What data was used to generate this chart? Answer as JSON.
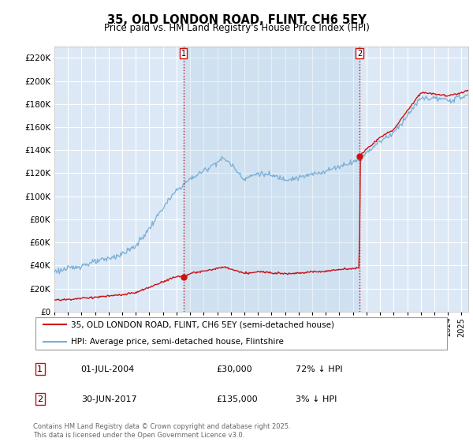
{
  "title": "35, OLD LONDON ROAD, FLINT, CH6 5EY",
  "subtitle": "Price paid vs. HM Land Registry's House Price Index (HPI)",
  "ylim": [
    0,
    230000
  ],
  "yticks": [
    0,
    20000,
    40000,
    60000,
    80000,
    100000,
    120000,
    140000,
    160000,
    180000,
    200000,
    220000
  ],
  "xlim_start": 1995.0,
  "xlim_end": 2025.5,
  "plot_background": "#dce8f5",
  "shade_color": "#c8dff0",
  "grid_color": "#ffffff",
  "hpi_color": "#7aaed6",
  "price_color": "#cc1111",
  "vline_color": "#cc1111",
  "transaction1_date": 2004.5,
  "transaction1_price": 30000,
  "transaction1_label": "1",
  "transaction2_date": 2017.5,
  "transaction2_price": 135000,
  "transaction2_label": "2",
  "legend_line1": "35, OLD LONDON ROAD, FLINT, CH6 5EY (semi-detached house)",
  "legend_line2": "HPI: Average price, semi-detached house, Flintshire",
  "annotation1_date": "01-JUL-2004",
  "annotation1_price": "£30,000",
  "annotation1_hpi": "72% ↓ HPI",
  "annotation2_date": "30-JUN-2017",
  "annotation2_price": "£135,000",
  "annotation2_hpi": "3% ↓ HPI",
  "footer": "Contains HM Land Registry data © Crown copyright and database right 2025.\nThis data is licensed under the Open Government Licence v3.0.",
  "title_fontsize": 10.5,
  "subtitle_fontsize": 8.5,
  "tick_fontsize": 7.5,
  "legend_fontsize": 7.5,
  "annotation_fontsize": 8,
  "footer_fontsize": 6.0
}
